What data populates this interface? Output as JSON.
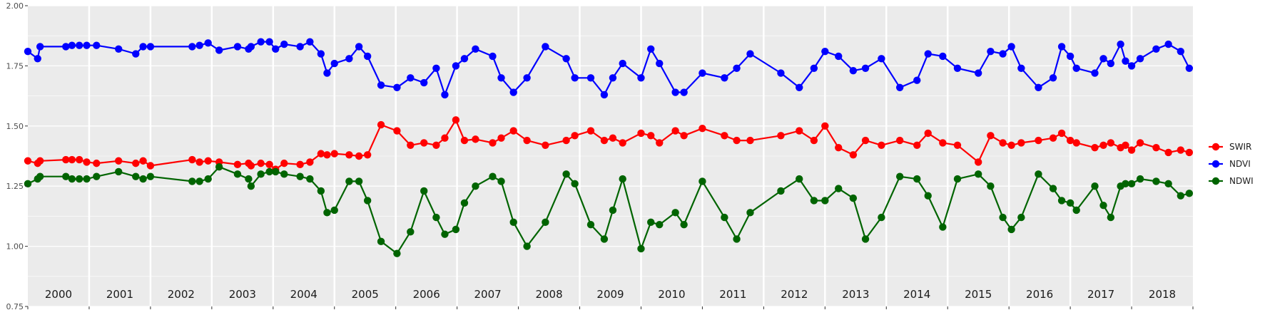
{
  "chart_data": {
    "type": "line",
    "title": "",
    "xlabel": "",
    "ylabel": "",
    "ylim": [
      0.75,
      2.0
    ],
    "y_ticks": [
      "0.75",
      "1.00",
      "1.25",
      "1.50",
      "1.75",
      "2.00"
    ],
    "y_tick_values": [
      0.75,
      1.0,
      1.25,
      1.5,
      1.75,
      2.0
    ],
    "xlim": [
      2000.0,
      2019.0
    ],
    "x_year_bands": [
      "2000",
      "2001",
      "2002",
      "2003",
      "2004",
      "2005",
      "2006",
      "2007",
      "2008",
      "2009",
      "2010",
      "2011",
      "2012",
      "2013",
      "2014",
      "2015",
      "2016",
      "2017",
      "2018"
    ],
    "grid": true,
    "background": "#ebebeb",
    "grid_color": "#ffffff",
    "legend_position": "right",
    "series": [
      {
        "name": "SWIR",
        "color": "#ff0000",
        "x": [
          2000.0,
          2000.16,
          2000.2,
          2000.62,
          2000.72,
          2000.84,
          2000.96,
          2001.12,
          2001.48,
          2001.76,
          2001.88,
          2002.0,
          2002.68,
          2002.8,
          2002.94,
          2003.12,
          2003.42,
          2003.6,
          2003.64,
          2003.8,
          2003.94,
          2004.04,
          2004.18,
          2004.44,
          2004.6,
          2004.78,
          2004.88,
          2005.0,
          2005.24,
          2005.4,
          2005.54,
          2005.76,
          2006.02,
          2006.24,
          2006.46,
          2006.66,
          2006.8,
          2006.98,
          2007.12,
          2007.3,
          2007.58,
          2007.72,
          2007.92,
          2008.14,
          2008.44,
          2008.78,
          2008.92,
          2009.18,
          2009.4,
          2009.54,
          2009.7,
          2010.0,
          2010.16,
          2010.3,
          2010.56,
          2010.7,
          2011.0,
          2011.36,
          2011.56,
          2011.78,
          2012.28,
          2012.58,
          2012.82,
          2013.0,
          2013.22,
          2013.46,
          2013.66,
          2013.92,
          2014.22,
          2014.5,
          2014.68,
          2014.92,
          2015.16,
          2015.5,
          2015.7,
          2015.9,
          2016.04,
          2016.2,
          2016.48,
          2016.72,
          2016.86,
          2017.0,
          2017.1,
          2017.4,
          2017.54,
          2017.66,
          2017.82,
          2017.9,
          2018.0,
          2018.14,
          2018.4,
          2018.6,
          2018.8,
          2018.94
        ],
        "y": [
          1.355,
          1.345,
          1.355,
          1.36,
          1.36,
          1.36,
          1.35,
          1.345,
          1.355,
          1.345,
          1.355,
          1.335,
          1.36,
          1.35,
          1.355,
          1.35,
          1.34,
          1.345,
          1.335,
          1.345,
          1.34,
          1.32,
          1.345,
          1.34,
          1.35,
          1.385,
          1.38,
          1.385,
          1.38,
          1.375,
          1.38,
          1.505,
          1.48,
          1.42,
          1.43,
          1.42,
          1.45,
          1.525,
          1.44,
          1.445,
          1.43,
          1.45,
          1.48,
          1.44,
          1.42,
          1.44,
          1.46,
          1.48,
          1.44,
          1.45,
          1.43,
          1.47,
          1.46,
          1.43,
          1.48,
          1.46,
          1.49,
          1.46,
          1.44,
          1.44,
          1.46,
          1.48,
          1.44,
          1.5,
          1.41,
          1.38,
          1.44,
          1.42,
          1.44,
          1.42,
          1.47,
          1.43,
          1.42,
          1.35,
          1.46,
          1.43,
          1.42,
          1.43,
          1.44,
          1.45,
          1.47,
          1.44,
          1.43,
          1.41,
          1.42,
          1.43,
          1.41,
          1.42,
          1.4,
          1.43,
          1.41,
          1.39,
          1.4,
          1.39
        ]
      },
      {
        "name": "NDVI",
        "color": "#0000ff",
        "x": [
          2000.0,
          2000.16,
          2000.2,
          2000.62,
          2000.72,
          2000.84,
          2000.96,
          2001.12,
          2001.48,
          2001.76,
          2001.88,
          2002.0,
          2002.68,
          2002.8,
          2002.94,
          2003.12,
          2003.42,
          2003.6,
          2003.64,
          2003.8,
          2003.94,
          2004.04,
          2004.18,
          2004.44,
          2004.6,
          2004.78,
          2004.88,
          2005.0,
          2005.24,
          2005.4,
          2005.54,
          2005.76,
          2006.02,
          2006.24,
          2006.46,
          2006.66,
          2006.8,
          2006.98,
          2007.12,
          2007.3,
          2007.58,
          2007.72,
          2007.92,
          2008.14,
          2008.44,
          2008.78,
          2008.92,
          2009.18,
          2009.4,
          2009.54,
          2009.7,
          2010.0,
          2010.16,
          2010.3,
          2010.56,
          2010.7,
          2011.0,
          2011.36,
          2011.56,
          2011.78,
          2012.28,
          2012.58,
          2012.82,
          2013.0,
          2013.22,
          2013.46,
          2013.66,
          2013.92,
          2014.22,
          2014.5,
          2014.68,
          2014.92,
          2015.16,
          2015.5,
          2015.7,
          2015.9,
          2016.04,
          2016.2,
          2016.48,
          2016.72,
          2016.86,
          2017.0,
          2017.1,
          2017.4,
          2017.54,
          2017.66,
          2017.82,
          2017.9,
          2018.0,
          2018.14,
          2018.4,
          2018.6,
          2018.8,
          2018.94
        ],
        "y": [
          1.81,
          1.78,
          1.83,
          1.83,
          1.835,
          1.835,
          1.835,
          1.835,
          1.82,
          1.8,
          1.83,
          1.83,
          1.83,
          1.835,
          1.845,
          1.815,
          1.83,
          1.82,
          1.83,
          1.85,
          1.85,
          1.82,
          1.84,
          1.83,
          1.85,
          1.8,
          1.72,
          1.76,
          1.78,
          1.83,
          1.79,
          1.67,
          1.66,
          1.7,
          1.68,
          1.74,
          1.63,
          1.75,
          1.78,
          1.82,
          1.79,
          1.7,
          1.64,
          1.7,
          1.83,
          1.78,
          1.7,
          1.7,
          1.63,
          1.7,
          1.76,
          1.7,
          1.82,
          1.76,
          1.64,
          1.64,
          1.72,
          1.7,
          1.74,
          1.8,
          1.72,
          1.66,
          1.74,
          1.81,
          1.79,
          1.73,
          1.74,
          1.78,
          1.66,
          1.69,
          1.8,
          1.79,
          1.74,
          1.72,
          1.81,
          1.8,
          1.83,
          1.74,
          1.66,
          1.7,
          1.83,
          1.79,
          1.74,
          1.72,
          1.78,
          1.76,
          1.84,
          1.77,
          1.75,
          1.78,
          1.82,
          1.84,
          1.81,
          1.74
        ]
      },
      {
        "name": "NDWI",
        "color": "#006400",
        "x": [
          2000.0,
          2000.16,
          2000.2,
          2000.62,
          2000.72,
          2000.84,
          2000.96,
          2001.12,
          2001.48,
          2001.76,
          2001.88,
          2002.0,
          2002.68,
          2002.8,
          2002.94,
          2003.12,
          2003.42,
          2003.6,
          2003.64,
          2003.8,
          2003.94,
          2004.04,
          2004.18,
          2004.44,
          2004.6,
          2004.78,
          2004.88,
          2005.0,
          2005.24,
          2005.4,
          2005.54,
          2005.76,
          2006.02,
          2006.24,
          2006.46,
          2006.66,
          2006.8,
          2006.98,
          2007.12,
          2007.3,
          2007.58,
          2007.72,
          2007.92,
          2008.14,
          2008.44,
          2008.78,
          2008.92,
          2009.18,
          2009.4,
          2009.54,
          2009.7,
          2010.0,
          2010.16,
          2010.3,
          2010.56,
          2010.7,
          2011.0,
          2011.36,
          2011.56,
          2011.78,
          2012.28,
          2012.58,
          2012.82,
          2013.0,
          2013.22,
          2013.46,
          2013.66,
          2013.92,
          2014.22,
          2014.5,
          2014.68,
          2014.92,
          2015.16,
          2015.5,
          2015.7,
          2015.9,
          2016.04,
          2016.2,
          2016.48,
          2016.72,
          2016.86,
          2017.0,
          2017.1,
          2017.4,
          2017.54,
          2017.66,
          2017.82,
          2017.9,
          2018.0,
          2018.14,
          2018.4,
          2018.6,
          2018.8,
          2018.94
        ],
        "y": [
          1.26,
          1.28,
          1.29,
          1.29,
          1.28,
          1.28,
          1.28,
          1.29,
          1.31,
          1.29,
          1.28,
          1.29,
          1.27,
          1.27,
          1.28,
          1.33,
          1.3,
          1.28,
          1.25,
          1.3,
          1.31,
          1.31,
          1.3,
          1.29,
          1.28,
          1.23,
          1.14,
          1.15,
          1.27,
          1.27,
          1.19,
          1.02,
          0.97,
          1.06,
          1.23,
          1.12,
          1.05,
          1.07,
          1.18,
          1.25,
          1.29,
          1.27,
          1.1,
          1.0,
          1.1,
          1.3,
          1.26,
          1.09,
          1.03,
          1.15,
          1.28,
          0.99,
          1.1,
          1.09,
          1.14,
          1.09,
          1.27,
          1.12,
          1.03,
          1.14,
          1.23,
          1.28,
          1.19,
          1.19,
          1.24,
          1.2,
          1.03,
          1.12,
          1.29,
          1.28,
          1.21,
          1.08,
          1.28,
          1.3,
          1.25,
          1.12,
          1.07,
          1.12,
          1.3,
          1.24,
          1.19,
          1.18,
          1.15,
          1.25,
          1.17,
          1.12,
          1.25,
          1.26,
          1.26,
          1.28,
          1.27,
          1.26,
          1.21,
          1.22
        ]
      }
    ]
  }
}
